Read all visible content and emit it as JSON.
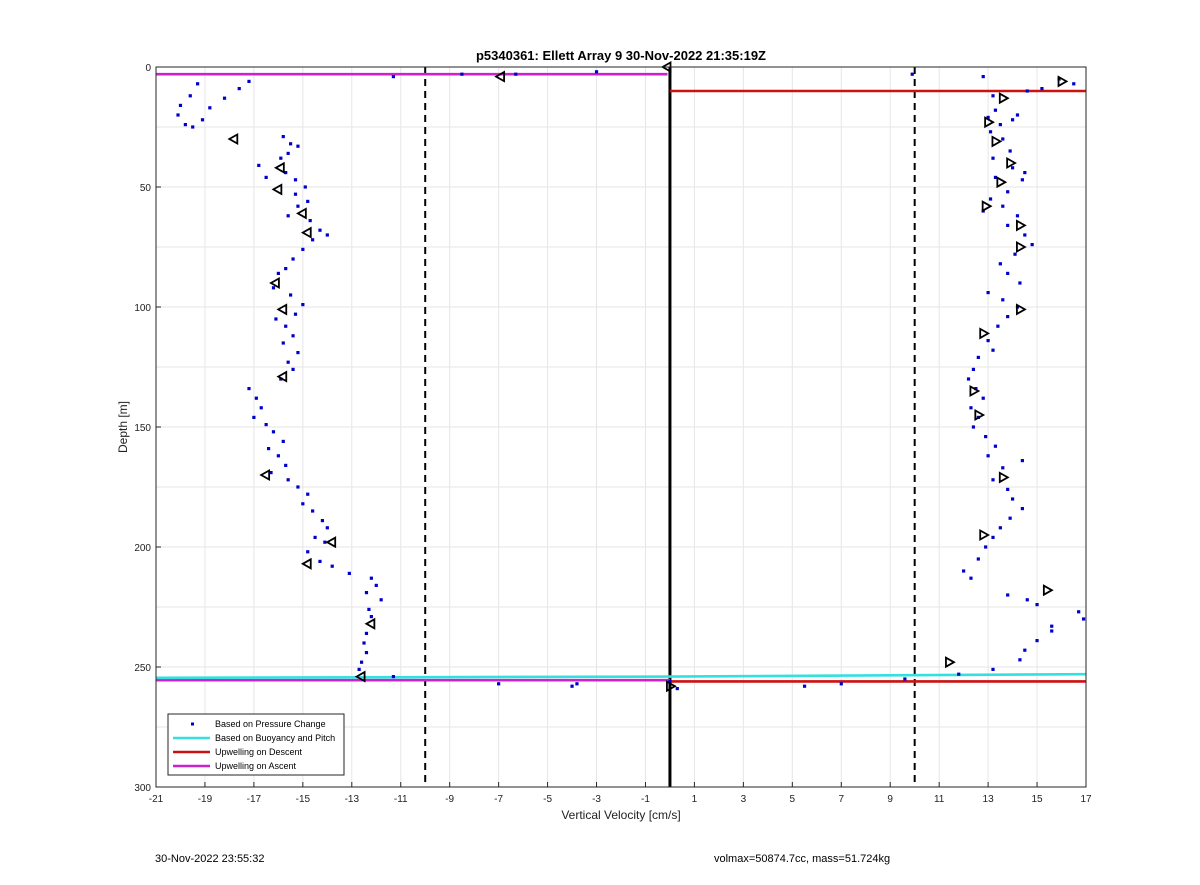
{
  "chart_data": {
    "type": "scatter",
    "title": "p5340361: Ellett Array 9 30-Nov-2022 21:35:19Z",
    "xlabel": "Vertical Velocity [cm/s]",
    "ylabel": "Depth [m]",
    "xlim": [
      -21,
      17
    ],
    "ylim": [
      0,
      300
    ],
    "y_reversed": true,
    "grid": true,
    "legend_position": "bottom-left",
    "xticks": [
      -21,
      -19,
      -17,
      -15,
      -13,
      -11,
      -9,
      -7,
      -5,
      -3,
      -1,
      1,
      3,
      5,
      7,
      9,
      11,
      13,
      15,
      17
    ],
    "yticks": [
      0,
      50,
      100,
      150,
      200,
      250,
      300
    ],
    "colors": {
      "pressure": "#0000cc",
      "buoyancy": "#33e0e0",
      "descent": "#cc1111",
      "ascent": "#cc22cc",
      "grid": "#e6e6e6"
    },
    "reference_lines": {
      "vertical_solid": [
        0
      ],
      "vertical_dashed": [
        -10,
        10
      ]
    },
    "legend": [
      {
        "key": "pressure",
        "label": "Based on Pressure Change"
      },
      {
        "key": "buoyancy",
        "label": "Based on Buoyancy and Pitch"
      },
      {
        "key": "descent",
        "label": "Upwelling on Descent"
      },
      {
        "key": "ascent",
        "label": "Upwelling on Ascent"
      }
    ],
    "series": [
      {
        "name": "Based on Pressure Change",
        "marker": "dot",
        "points": [
          [
            -19.3,
            7
          ],
          [
            -19.6,
            12
          ],
          [
            -20.0,
            16
          ],
          [
            -20.1,
            20
          ],
          [
            -19.8,
            24
          ],
          [
            -19.5,
            25
          ],
          [
            -19.1,
            22
          ],
          [
            -18.8,
            17
          ],
          [
            -18.2,
            13
          ],
          [
            -17.6,
            9
          ],
          [
            -17.2,
            6
          ],
          [
            -15.8,
            29
          ],
          [
            -15.5,
            32
          ],
          [
            -15.6,
            36
          ],
          [
            -15.2,
            33
          ],
          [
            -15.9,
            38
          ],
          [
            -16.8,
            41
          ],
          [
            -16.5,
            46
          ],
          [
            -15.7,
            44
          ],
          [
            -15.3,
            47
          ],
          [
            -14.9,
            50
          ],
          [
            -15.3,
            53
          ],
          [
            -14.8,
            56
          ],
          [
            -15.2,
            58
          ],
          [
            -15.6,
            62
          ],
          [
            -14.7,
            64
          ],
          [
            -14.3,
            68
          ],
          [
            -14.0,
            70
          ],
          [
            -14.6,
            72
          ],
          [
            -15.0,
            76
          ],
          [
            -15.4,
            80
          ],
          [
            -15.7,
            84
          ],
          [
            -16.0,
            86
          ],
          [
            -16.2,
            92
          ],
          [
            -15.5,
            95
          ],
          [
            -15.0,
            99
          ],
          [
            -15.3,
            103
          ],
          [
            -16.1,
            105
          ],
          [
            -15.7,
            108
          ],
          [
            -15.4,
            112
          ],
          [
            -15.8,
            115
          ],
          [
            -15.2,
            119
          ],
          [
            -15.6,
            123
          ],
          [
            -15.4,
            126
          ],
          [
            -15.9,
            130
          ],
          [
            -17.2,
            134
          ],
          [
            -16.9,
            138
          ],
          [
            -16.7,
            142
          ],
          [
            -17.0,
            146
          ],
          [
            -16.5,
            149
          ],
          [
            -16.2,
            152
          ],
          [
            -15.8,
            156
          ],
          [
            -16.4,
            159
          ],
          [
            -16.0,
            162
          ],
          [
            -15.7,
            166
          ],
          [
            -16.3,
            169
          ],
          [
            -15.6,
            172
          ],
          [
            -15.2,
            175
          ],
          [
            -14.8,
            178
          ],
          [
            -15.0,
            182
          ],
          [
            -14.6,
            185
          ],
          [
            -14.2,
            189
          ],
          [
            -14.0,
            192
          ],
          [
            -14.5,
            196
          ],
          [
            -14.1,
            198
          ],
          [
            -14.8,
            202
          ],
          [
            -14.3,
            206
          ],
          [
            -13.8,
            208
          ],
          [
            -13.1,
            211
          ],
          [
            -12.2,
            213
          ],
          [
            -12.0,
            216
          ],
          [
            -12.4,
            219
          ],
          [
            -11.8,
            222
          ],
          [
            -12.3,
            226
          ],
          [
            -12.2,
            229
          ],
          [
            -12.4,
            236
          ],
          [
            -12.5,
            240
          ],
          [
            -12.4,
            244
          ],
          [
            -12.6,
            248
          ],
          [
            -12.7,
            251
          ],
          [
            -11.3,
            4
          ],
          [
            -8.5,
            3
          ],
          [
            -6.3,
            3
          ],
          [
            -3.0,
            2
          ],
          [
            -11.3,
            254
          ],
          [
            -7.0,
            257
          ],
          [
            -4.0,
            258
          ],
          [
            -3.8,
            257
          ],
          [
            0.3,
            259
          ],
          [
            0.0,
            256
          ],
          [
            9.9,
            3
          ],
          [
            12.8,
            4
          ],
          [
            13.2,
            12
          ],
          [
            14.6,
            10
          ],
          [
            15.2,
            9
          ],
          [
            16.5,
            7
          ],
          [
            15.9,
            5
          ],
          [
            13.3,
            18
          ],
          [
            13.0,
            21
          ],
          [
            13.5,
            24
          ],
          [
            14.0,
            22
          ],
          [
            14.2,
            20
          ],
          [
            13.1,
            27
          ],
          [
            13.6,
            30
          ],
          [
            13.9,
            35
          ],
          [
            13.2,
            38
          ],
          [
            14.0,
            42
          ],
          [
            14.5,
            44
          ],
          [
            13.3,
            46
          ],
          [
            14.4,
            47
          ],
          [
            13.8,
            52
          ],
          [
            13.1,
            55
          ],
          [
            13.6,
            58
          ],
          [
            12.8,
            60
          ],
          [
            14.2,
            62
          ],
          [
            13.8,
            66
          ],
          [
            14.5,
            70
          ],
          [
            14.8,
            74
          ],
          [
            14.1,
            78
          ],
          [
            13.5,
            82
          ],
          [
            13.8,
            86
          ],
          [
            14.3,
            90
          ],
          [
            13.0,
            94
          ],
          [
            13.6,
            97
          ],
          [
            14.2,
            100
          ],
          [
            13.8,
            104
          ],
          [
            13.4,
            108
          ],
          [
            13.0,
            114
          ],
          [
            13.2,
            118
          ],
          [
            12.6,
            121
          ],
          [
            12.4,
            126
          ],
          [
            12.2,
            130
          ],
          [
            12.5,
            134
          ],
          [
            12.8,
            138
          ],
          [
            12.3,
            142
          ],
          [
            12.6,
            146
          ],
          [
            12.4,
            150
          ],
          [
            12.9,
            154
          ],
          [
            13.3,
            158
          ],
          [
            13.0,
            162
          ],
          [
            14.4,
            164
          ],
          [
            13.6,
            167
          ],
          [
            13.2,
            172
          ],
          [
            13.8,
            176
          ],
          [
            14.0,
            180
          ],
          [
            14.4,
            184
          ],
          [
            13.9,
            188
          ],
          [
            13.5,
            192
          ],
          [
            13.2,
            196
          ],
          [
            12.9,
            200
          ],
          [
            12.6,
            205
          ],
          [
            12.0,
            210
          ],
          [
            12.3,
            213
          ],
          [
            13.8,
            220
          ],
          [
            14.6,
            222
          ],
          [
            15.0,
            224
          ],
          [
            16.7,
            227
          ],
          [
            16.9,
            230
          ],
          [
            15.6,
            233
          ],
          [
            15.6,
            235
          ],
          [
            15.0,
            239
          ],
          [
            14.5,
            243
          ],
          [
            14.3,
            247
          ],
          [
            13.2,
            251
          ],
          [
            11.8,
            253
          ],
          [
            9.6,
            255
          ],
          [
            7.0,
            257
          ],
          [
            5.5,
            258
          ]
        ]
      },
      {
        "name": "Based on Buoyancy and Pitch",
        "marker": "triangle",
        "points": [
          [
            -17.8,
            30
          ],
          [
            -15.9,
            42
          ],
          [
            -16.0,
            51
          ],
          [
            -15.0,
            61
          ],
          [
            -14.8,
            69
          ],
          [
            -16.1,
            90
          ],
          [
            -15.8,
            101
          ],
          [
            -15.8,
            129
          ],
          [
            -16.5,
            170
          ],
          [
            -13.8,
            198
          ],
          [
            -14.8,
            207
          ],
          [
            -12.2,
            232
          ],
          [
            -12.6,
            254
          ],
          [
            -0.1,
            0
          ],
          [
            -6.9,
            4
          ],
          [
            0.0,
            258
          ],
          [
            16.0,
            6
          ],
          [
            13.6,
            13
          ],
          [
            13.0,
            23
          ],
          [
            13.3,
            31
          ],
          [
            13.9,
            40
          ],
          [
            13.5,
            48
          ],
          [
            12.9,
            58
          ],
          [
            14.3,
            66
          ],
          [
            14.3,
            75
          ],
          [
            14.3,
            101
          ],
          [
            12.8,
            111
          ],
          [
            12.4,
            135
          ],
          [
            12.6,
            145
          ],
          [
            13.6,
            171
          ],
          [
            12.8,
            195
          ],
          [
            15.4,
            218
          ],
          [
            11.4,
            248
          ]
        ]
      }
    ],
    "lines": [
      {
        "key": "ascent",
        "label": "Upwelling on Ascent",
        "segments": [
          [
            [
              -21,
              3
            ],
            [
              -0.1,
              3
            ]
          ],
          [
            [
              -21,
              255.5
            ],
            [
              0,
              255.5
            ]
          ]
        ]
      },
      {
        "key": "buoyancy",
        "label": "Based on Buoyancy and Pitch",
        "segments": [
          [
            [
              -21,
              254.5
            ],
            [
              0,
              254.0
            ],
            [
              17,
              253.0
            ]
          ]
        ]
      },
      {
        "key": "descent",
        "label": "Upwelling on Descent",
        "segments": [
          [
            [
              0,
              10
            ],
            [
              17,
              10
            ]
          ],
          [
            [
              0,
              256
            ],
            [
              17,
              256
            ]
          ]
        ]
      }
    ]
  },
  "footer": {
    "left": "30-Nov-2022 23:55:32",
    "right": "volmax=50874.7cc, mass=51.724kg"
  }
}
